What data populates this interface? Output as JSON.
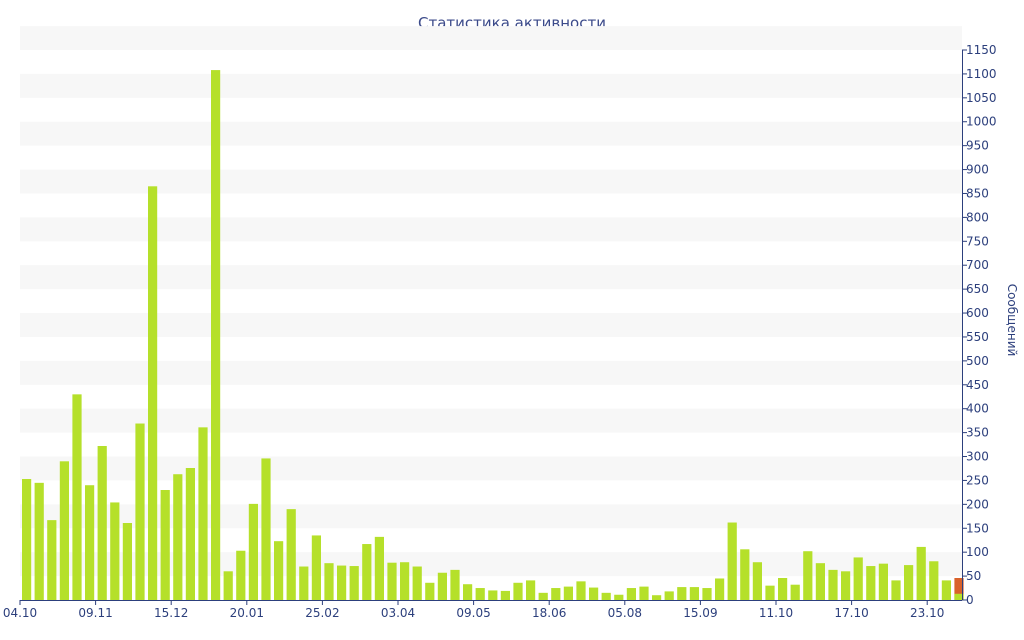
{
  "chart_data": {
    "type": "bar",
    "title": "Статистика активности",
    "xlabel": "",
    "ylabel": "Сообщений",
    "ylim": [
      0,
      1150
    ],
    "ytick_step": 50,
    "grid": "alternating horizontal bands",
    "y_axis_side": "right",
    "x_tick_labels": [
      "04.10",
      "09.11",
      "15.12",
      "20.01",
      "25.02",
      "03.04",
      "09.05",
      "18.06",
      "05.08",
      "15.09",
      "11.10",
      "17.10",
      "23.10"
    ],
    "x_tick_bar_index": [
      0,
      6,
      12,
      18,
      24,
      30,
      36,
      42,
      48,
      54,
      60,
      66,
      72
    ],
    "values": [
      253,
      245,
      167,
      290,
      430,
      240,
      322,
      204,
      161,
      369,
      865,
      230,
      263,
      276,
      361,
      1108,
      60,
      103,
      201,
      296,
      123,
      190,
      70,
      135,
      77,
      72,
      71,
      117,
      132,
      78,
      79,
      70,
      36,
      57,
      63,
      33,
      25,
      20,
      19,
      36,
      41,
      15,
      25,
      28,
      39,
      26,
      15,
      11,
      25,
      28,
      10,
      18,
      27,
      27,
      25,
      45,
      162,
      106,
      79,
      30,
      46,
      32,
      102,
      77,
      63,
      60,
      89,
      71,
      76,
      41,
      73,
      111,
      81,
      41,
      46
    ],
    "colors": {
      "bar": "#b5e02a",
      "current_bar": "#d9622b",
      "band": "#f7f7f7",
      "axis": "#2c3f7c"
    },
    "current_bar_index": 74,
    "current_bar_partial_value": 13
  }
}
